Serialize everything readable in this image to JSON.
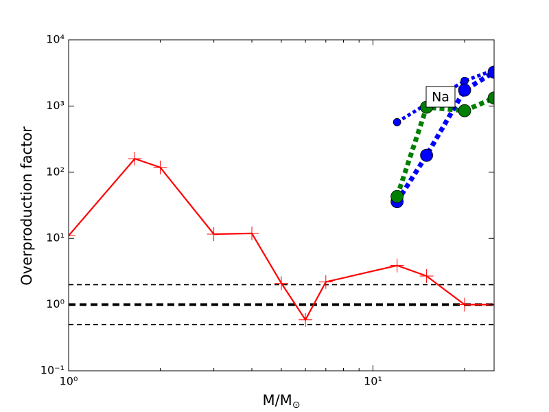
{
  "chart_data": {
    "type": "line",
    "xlabel": "M/M",
    "xlabel_subscript": "⊙",
    "ylabel": "Overproduction factor",
    "xscale": "log",
    "yscale": "log",
    "xlim": [
      1,
      25
    ],
    "ylim": [
      0.1,
      10000
    ],
    "xticks": [
      {
        "value": 1,
        "label": "10⁰"
      },
      {
        "value": 10,
        "label": "10¹"
      }
    ],
    "xminorticks": [
      2,
      3,
      4,
      5,
      6,
      7,
      8,
      9,
      20
    ],
    "yticks": [
      {
        "value": 0.1,
        "label": "10⁻¹"
      },
      {
        "value": 1,
        "label": "10⁰"
      },
      {
        "value": 10,
        "label": "10¹"
      },
      {
        "value": 100,
        "label": "10²"
      },
      {
        "value": 1000,
        "label": "10³"
      },
      {
        "value": 10000,
        "label": "10⁴"
      }
    ],
    "reference_lines": [
      {
        "value": 2,
        "color": "#000000",
        "linestyle": "dashed"
      },
      {
        "value": 1,
        "color": "#000000",
        "linestyle": "dashed-bold"
      },
      {
        "value": 0.5,
        "color": "#000000",
        "linestyle": "dashed"
      }
    ],
    "series": [
      {
        "color": "#0000ff",
        "linestyle": "dotted",
        "marker": ".",
        "x": [
          12,
          20,
          25
        ],
        "values": [
          570,
          2400,
          3500
        ]
      },
      {
        "color": "#0000ff",
        "linestyle": "dotted",
        "marker": "o",
        "x": [
          12,
          15,
          20,
          25
        ],
        "values": [
          36,
          180,
          1740,
          3250
        ]
      },
      {
        "color": "#007f00",
        "linestyle": "dotted",
        "marker": "o",
        "x": [
          12,
          15,
          20,
          25
        ],
        "values": [
          43,
          960,
          850,
          1320
        ]
      },
      {
        "color": "#ff0000",
        "linestyle": "solid",
        "marker": "+",
        "x": [
          1,
          1.65,
          2,
          3,
          4,
          5,
          6,
          7,
          12,
          15,
          20,
          25
        ],
        "values": [
          11,
          160,
          118,
          11.6,
          11.9,
          2.1,
          0.59,
          2.2,
          3.9,
          2.7,
          1.0,
          1.0
        ]
      }
    ],
    "annotation": "Na"
  }
}
